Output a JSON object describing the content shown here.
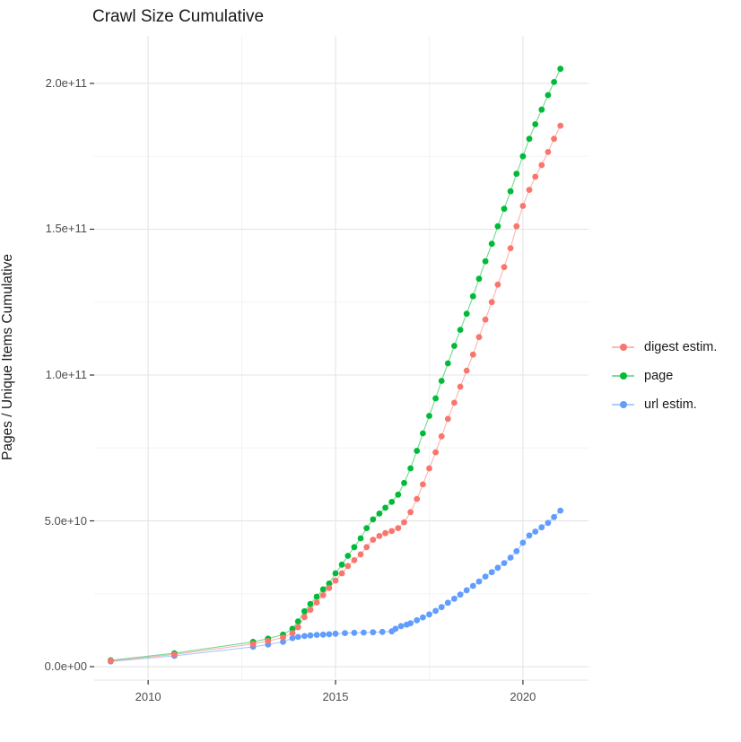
{
  "page": {
    "background_color": "#ffffff",
    "text_color": "#1a1a1a",
    "tick_label_color": "#4d4d4d",
    "grid_major_color": "#e4e4e4",
    "grid_minor_color": "#f2f2f2",
    "axis_tick_color": "#333333"
  },
  "chart_data": {
    "type": "line",
    "title": "Crawl Size Cumulative",
    "xlabel": "",
    "ylabel": "Pages / Unique Items Cumulative",
    "y_values_unit": "1e9 (all point values below are billions; axis labels shown in scientific notation)",
    "grid": "major and minor gridlines, light gray on white, no panel border",
    "legend_position": "right, vertically centered",
    "xlim": [
      2008.56,
      2021.75
    ],
    "ylim": [
      -4.3,
      216.3
    ],
    "x_major_ticks": [
      {
        "label": "2010",
        "value": 2010
      },
      {
        "label": "2015",
        "value": 2015
      },
      {
        "label": "2020",
        "value": 2020
      }
    ],
    "x_minor_gridlines": [
      2012.5,
      2017.5
    ],
    "y_major_ticks": [
      {
        "label": "0.0e+00",
        "value": 0
      },
      {
        "label": "5.0e+10",
        "value": 50
      },
      {
        "label": "1.0e+11",
        "value": 100
      },
      {
        "label": "1.5e+11",
        "value": 150
      },
      {
        "label": "2.0e+11",
        "value": 200
      }
    ],
    "y_minor_gridlines": [
      25,
      75,
      125,
      175
    ],
    "draw_order": [
      1,
      2,
      0
    ],
    "series": [
      {
        "name": "digest estim.",
        "color": "#F8766D",
        "points": [
          [
            2009.0,
            2
          ],
          [
            2010.7,
            4.2
          ],
          [
            2012.8,
            7.8
          ],
          [
            2013.2,
            8.8
          ],
          [
            2013.6,
            10
          ],
          [
            2013.85,
            11.5
          ],
          [
            2014.0,
            13.5
          ],
          [
            2014.17,
            17
          ],
          [
            2014.33,
            19.5
          ],
          [
            2014.5,
            22
          ],
          [
            2014.67,
            24.5
          ],
          [
            2014.83,
            27
          ],
          [
            2015.0,
            29.5
          ],
          [
            2015.17,
            32
          ],
          [
            2015.33,
            34.5
          ],
          [
            2015.5,
            36.5
          ],
          [
            2015.67,
            38.5
          ],
          [
            2015.83,
            41
          ],
          [
            2016.0,
            43.5
          ],
          [
            2016.17,
            44.8
          ],
          [
            2016.33,
            45.8
          ],
          [
            2016.5,
            46.5
          ],
          [
            2016.67,
            47.5
          ],
          [
            2016.83,
            49.5
          ],
          [
            2017.0,
            53
          ],
          [
            2017.17,
            57.5
          ],
          [
            2017.33,
            62.5
          ],
          [
            2017.5,
            68
          ],
          [
            2017.67,
            73.5
          ],
          [
            2017.83,
            79
          ],
          [
            2018.0,
            85
          ],
          [
            2018.17,
            90.5
          ],
          [
            2018.33,
            96
          ],
          [
            2018.5,
            101.5
          ],
          [
            2018.67,
            107
          ],
          [
            2018.83,
            113
          ],
          [
            2019.0,
            119
          ],
          [
            2019.17,
            125
          ],
          [
            2019.33,
            131
          ],
          [
            2019.5,
            137
          ],
          [
            2019.67,
            143.5
          ],
          [
            2019.83,
            151
          ],
          [
            2020.0,
            158
          ],
          [
            2020.17,
            163.5
          ],
          [
            2020.33,
            168
          ],
          [
            2020.5,
            172
          ],
          [
            2020.67,
            176.5
          ],
          [
            2020.83,
            181
          ],
          [
            2021.0,
            185.5
          ]
        ]
      },
      {
        "name": "page",
        "color": "#00BA38",
        "points": [
          [
            2009.0,
            2.2
          ],
          [
            2010.7,
            4.6
          ],
          [
            2012.8,
            8.5
          ],
          [
            2013.2,
            9.6
          ],
          [
            2013.6,
            11
          ],
          [
            2013.85,
            13
          ],
          [
            2014.0,
            15.5
          ],
          [
            2014.17,
            19
          ],
          [
            2014.33,
            21.5
          ],
          [
            2014.5,
            24
          ],
          [
            2014.67,
            26.5
          ],
          [
            2014.83,
            28.5
          ],
          [
            2015.0,
            32
          ],
          [
            2015.17,
            35
          ],
          [
            2015.33,
            38
          ],
          [
            2015.5,
            41
          ],
          [
            2015.67,
            44
          ],
          [
            2015.83,
            47.5
          ],
          [
            2016.0,
            50.5
          ],
          [
            2016.17,
            52.5
          ],
          [
            2016.33,
            54.5
          ],
          [
            2016.5,
            56.5
          ],
          [
            2016.67,
            59
          ],
          [
            2016.83,
            63
          ],
          [
            2017.0,
            68
          ],
          [
            2017.17,
            74
          ],
          [
            2017.33,
            80
          ],
          [
            2017.5,
            86
          ],
          [
            2017.67,
            92
          ],
          [
            2017.83,
            98
          ],
          [
            2018.0,
            104
          ],
          [
            2018.17,
            110
          ],
          [
            2018.33,
            115.5
          ],
          [
            2018.5,
            121
          ],
          [
            2018.67,
            127
          ],
          [
            2018.83,
            133
          ],
          [
            2019.0,
            139
          ],
          [
            2019.17,
            145
          ],
          [
            2019.33,
            151
          ],
          [
            2019.5,
            157
          ],
          [
            2019.67,
            163
          ],
          [
            2019.83,
            169
          ],
          [
            2020.0,
            175
          ],
          [
            2020.17,
            181
          ],
          [
            2020.33,
            186
          ],
          [
            2020.5,
            191
          ],
          [
            2020.67,
            196
          ],
          [
            2020.83,
            200.5
          ],
          [
            2021.0,
            205
          ]
        ]
      },
      {
        "name": "url estim.",
        "color": "#619CFF",
        "points": [
          [
            2009.0,
            1.8
          ],
          [
            2010.7,
            3.7
          ],
          [
            2012.8,
            6.8
          ],
          [
            2013.2,
            7.6
          ],
          [
            2013.6,
            8.5
          ],
          [
            2013.85,
            9.8
          ],
          [
            2014.0,
            10.2
          ],
          [
            2014.17,
            10.5
          ],
          [
            2014.33,
            10.7
          ],
          [
            2014.5,
            10.9
          ],
          [
            2014.67,
            11.0
          ],
          [
            2014.83,
            11.1
          ],
          [
            2015.0,
            11.3
          ],
          [
            2015.25,
            11.5
          ],
          [
            2015.5,
            11.6
          ],
          [
            2015.75,
            11.7
          ],
          [
            2016.0,
            11.8
          ],
          [
            2016.25,
            11.9
          ],
          [
            2016.5,
            12.1
          ],
          [
            2016.6,
            13.0
          ],
          [
            2016.75,
            13.9
          ],
          [
            2016.9,
            14.4
          ],
          [
            2017.0,
            14.9
          ],
          [
            2017.17,
            15.9
          ],
          [
            2017.33,
            16.9
          ],
          [
            2017.5,
            17.9
          ],
          [
            2017.67,
            19.1
          ],
          [
            2017.83,
            20.4
          ],
          [
            2018.0,
            21.9
          ],
          [
            2018.17,
            23.3
          ],
          [
            2018.33,
            24.7
          ],
          [
            2018.5,
            26.2
          ],
          [
            2018.67,
            27.7
          ],
          [
            2018.83,
            29.2
          ],
          [
            2019.0,
            30.9
          ],
          [
            2019.17,
            32.4
          ],
          [
            2019.33,
            33.9
          ],
          [
            2019.5,
            35.5
          ],
          [
            2019.67,
            37.4
          ],
          [
            2019.83,
            39.6
          ],
          [
            2020.0,
            42.5
          ],
          [
            2020.17,
            45.0
          ],
          [
            2020.33,
            46.3
          ],
          [
            2020.5,
            47.8
          ],
          [
            2020.67,
            49.3
          ],
          [
            2020.83,
            51.3
          ],
          [
            2021.0,
            53.5
          ]
        ]
      }
    ]
  }
}
